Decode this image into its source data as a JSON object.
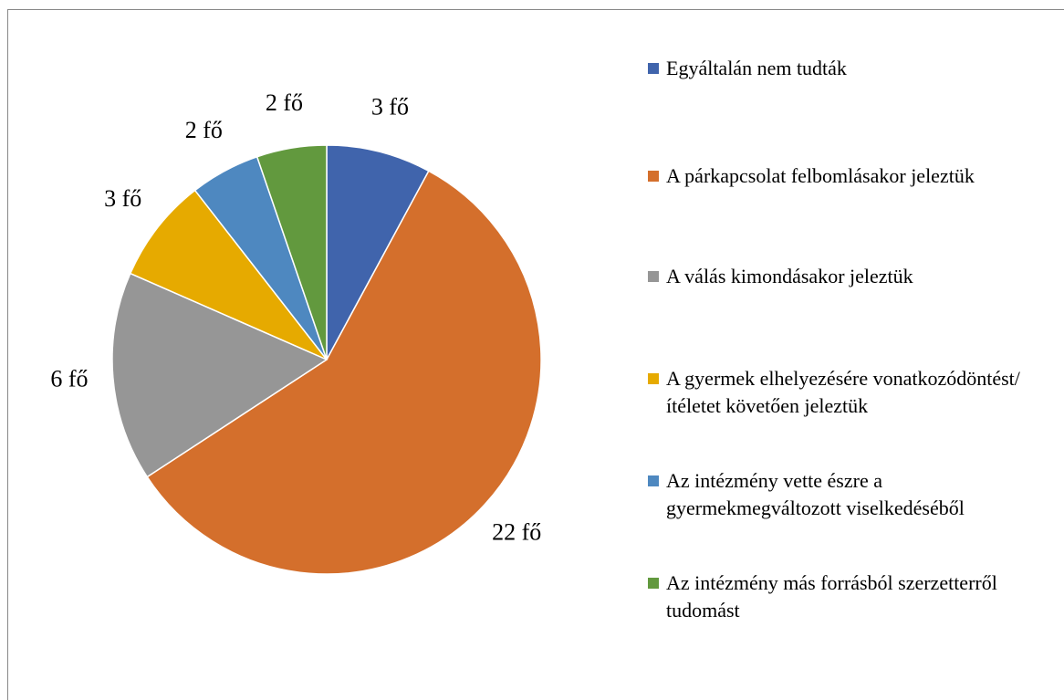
{
  "chart_data": {
    "type": "pie",
    "categories": [
      "Egyáltalán nem tudták",
      "A párkapcsolat felbomlásakor jeleztük",
      "A válás kimondásakor jeleztük",
      "A gyermek elhelyezésére vonatkozódöntést/ítéletet követően jeleztük",
      "Az intézmény vette észre a gyermekmegváltozott viselkedéséből",
      "Az intézmény más forrásból szerzetterről tudomást"
    ],
    "values": [
      3,
      22,
      6,
      3,
      2,
      2
    ],
    "value_labels": [
      "3 fő",
      "22 fő",
      "6 fő",
      "3 fő",
      "2 fő",
      "2 fő"
    ],
    "colors": [
      "#4064ac",
      "#d46f2c",
      "#969696",
      "#e6aa00",
      "#4e88c0",
      "#62993e"
    ],
    "legend": "right"
  }
}
